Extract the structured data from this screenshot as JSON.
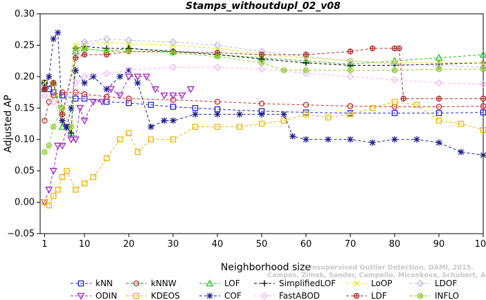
{
  "chart_data": {
    "type": "line",
    "title": "Stamps_withoutdupl_02_v08",
    "xlabel": "Neighborhood size",
    "ylabel": "Adjusted AP",
    "xlim": [
      0,
      100
    ],
    "ylim": [
      -0.05,
      0.3
    ],
    "xticks": [
      1,
      10,
      20,
      30,
      40,
      50,
      60,
      70,
      80,
      90,
      100
    ],
    "yticks": [
      -0.05,
      0.0,
      0.05,
      0.1,
      0.15,
      0.2,
      0.25,
      0.3
    ],
    "yticklabels": [
      "−0.05",
      "0.00",
      "0.05",
      "0.10",
      "0.15",
      "0.20",
      "0.25",
      "0.30"
    ],
    "legend_position": "bottom",
    "watermark": [
      "Unsupervised Outlier Detection. DAMI, 2015.",
      "Campos, Zimek, Sander, Campello, Micenkova, Schubert, Assent, Houle"
    ],
    "series": [
      {
        "name": "kNN",
        "color": "#1f1fd4",
        "marker": "square",
        "x": [
          1,
          2,
          3,
          5,
          8,
          10,
          15,
          20,
          25,
          30,
          35,
          40,
          50,
          60,
          70,
          80,
          90,
          100
        ],
        "y": [
          0.19,
          0.18,
          0.175,
          0.17,
          0.165,
          0.165,
          0.16,
          0.158,
          0.155,
          0.152,
          0.15,
          0.148,
          0.145,
          0.143,
          0.142,
          0.142,
          0.142,
          0.143
        ]
      },
      {
        "name": "kNNW",
        "color": "#c82828",
        "marker": "circle",
        "x": [
          1,
          2,
          3,
          5,
          8,
          10,
          15,
          20,
          30,
          40,
          50,
          60,
          70,
          80,
          90,
          100
        ],
        "y": [
          0.13,
          0.16,
          0.17,
          0.175,
          0.175,
          0.172,
          0.168,
          0.165,
          0.163,
          0.16,
          0.157,
          0.155,
          0.153,
          0.152,
          0.152,
          0.153
        ]
      },
      {
        "name": "LOF",
        "color": "#22c022",
        "marker": "triangle",
        "x": [
          1,
          3,
          5,
          7,
          8,
          10,
          15,
          20,
          30,
          40,
          50,
          60,
          70,
          80,
          90,
          100
        ],
        "y": [
          0.18,
          0.19,
          0.12,
          0.11,
          0.24,
          0.245,
          0.24,
          0.245,
          0.24,
          0.235,
          0.23,
          0.225,
          0.22,
          0.225,
          0.23,
          0.235
        ]
      },
      {
        "name": "SimplifiedLOF",
        "color": "#000000",
        "marker": "plus",
        "x": [
          1,
          3,
          5,
          7,
          8,
          10,
          15,
          20,
          30,
          40,
          50,
          60,
          70,
          80,
          90,
          100
        ],
        "y": [
          0.19,
          0.19,
          0.13,
          0.11,
          0.245,
          0.248,
          0.245,
          0.245,
          0.24,
          0.235,
          0.228,
          0.222,
          0.218,
          0.218,
          0.22,
          0.222
        ]
      },
      {
        "name": "LoOP",
        "color": "#e6e600",
        "marker": "x",
        "x": [
          1,
          3,
          5,
          8,
          10,
          15,
          20,
          30,
          40,
          50,
          60,
          70,
          80,
          90,
          100
        ],
        "y": [
          0.19,
          0.19,
          0.13,
          0.25,
          0.252,
          0.255,
          0.252,
          0.25,
          0.245,
          0.235,
          0.23,
          0.225,
          0.222,
          0.222,
          0.222
        ]
      },
      {
        "name": "LDOF",
        "color": "#b8b8e0",
        "marker": "diamond",
        "x": [
          1,
          3,
          5,
          8,
          10,
          15,
          20,
          30,
          40,
          50,
          60,
          70,
          80,
          90,
          100
        ],
        "y": [
          0.18,
          0.19,
          0.14,
          0.24,
          0.255,
          0.26,
          0.258,
          0.255,
          0.25,
          0.24,
          0.232,
          0.225,
          0.22,
          0.218,
          0.215
        ]
      },
      {
        "name": "ODIN",
        "color": "#a020c8",
        "marker": "triangle-down",
        "x": [
          1,
          2,
          3,
          4,
          5,
          6,
          7,
          8,
          9,
          10,
          12,
          14,
          16,
          18,
          20,
          22,
          24,
          26,
          28,
          30,
          32,
          34
        ],
        "y": [
          0.0,
          0.02,
          0.05,
          0.09,
          0.09,
          0.12,
          0.1,
          0.1,
          0.15,
          0.13,
          0.16,
          0.16,
          0.18,
          0.17,
          0.2,
          0.2,
          0.2,
          0.18,
          0.17,
          0.17,
          0.17,
          0.18
        ]
      },
      {
        "name": "KDEOS",
        "color": "#f0b400",
        "marker": "square",
        "x": [
          1,
          2,
          3,
          4,
          5,
          6,
          8,
          10,
          12,
          15,
          18,
          20,
          22,
          25,
          30,
          35,
          40,
          45,
          50,
          55,
          60,
          65,
          70,
          75,
          80,
          85,
          90,
          95,
          100
        ],
        "y": [
          0.0,
          -0.005,
          0.01,
          0.02,
          0.04,
          0.05,
          0.02,
          0.03,
          0.04,
          0.07,
          0.1,
          0.11,
          0.08,
          0.1,
          0.1,
          0.12,
          0.12,
          0.12,
          0.125,
          0.13,
          0.14,
          0.135,
          0.14,
          0.15,
          0.16,
          0.155,
          0.13,
          0.125,
          0.115
        ]
      },
      {
        "name": "COF",
        "color": "#1c1c8c",
        "marker": "asterisk",
        "x": [
          1,
          2,
          3,
          4,
          5,
          6,
          7,
          8,
          10,
          12,
          15,
          18,
          20,
          22,
          25,
          28,
          30,
          35,
          40,
          45,
          50,
          55,
          57,
          60,
          65,
          70,
          75,
          80,
          85,
          90,
          95,
          100
        ],
        "y": [
          0.18,
          0.2,
          0.26,
          0.27,
          0.13,
          0.12,
          0.15,
          0.21,
          0.19,
          0.2,
          0.18,
          0.2,
          0.21,
          0.19,
          0.12,
          0.13,
          0.13,
          0.14,
          0.14,
          0.14,
          0.14,
          0.14,
          0.105,
          0.1,
          0.1,
          0.1,
          0.095,
          0.1,
          0.1,
          0.095,
          0.08,
          0.075
        ]
      },
      {
        "name": "FastABOD",
        "color": "#f4b8f4",
        "marker": "diamond",
        "x": [
          1,
          3,
          5,
          8,
          10,
          15,
          20,
          30,
          40,
          50,
          60,
          70,
          80,
          90,
          100
        ],
        "y": [
          0.17,
          0.16,
          0.14,
          0.19,
          0.2,
          0.205,
          0.21,
          0.215,
          0.215,
          0.212,
          0.205,
          0.2,
          0.195,
          0.19,
          0.188
        ]
      },
      {
        "name": "LDF",
        "color": "#b02828",
        "marker": "circle-plus",
        "x": [
          1,
          3,
          5,
          8,
          10,
          15,
          20,
          30,
          40,
          50,
          60,
          70,
          75,
          80,
          81,
          82,
          90,
          100
        ],
        "y": [
          0.18,
          0.19,
          0.14,
          0.23,
          0.235,
          0.235,
          0.24,
          0.24,
          0.238,
          0.235,
          0.235,
          0.24,
          0.245,
          0.245,
          0.245,
          0.165,
          0.165,
          0.165
        ]
      },
      {
        "name": "INFLO",
        "color": "#8ccc28",
        "marker": "circle-x",
        "x": [
          1,
          2,
          3,
          5,
          7,
          8,
          10,
          15,
          20,
          30,
          40,
          50,
          55,
          60,
          70,
          80,
          90,
          100
        ],
        "y": [
          0.08,
          0.09,
          0.12,
          0.15,
          0.12,
          0.245,
          0.245,
          0.24,
          0.24,
          0.238,
          0.232,
          0.222,
          0.21,
          0.21,
          0.21,
          0.21,
          0.212,
          0.212
        ]
      }
    ]
  }
}
